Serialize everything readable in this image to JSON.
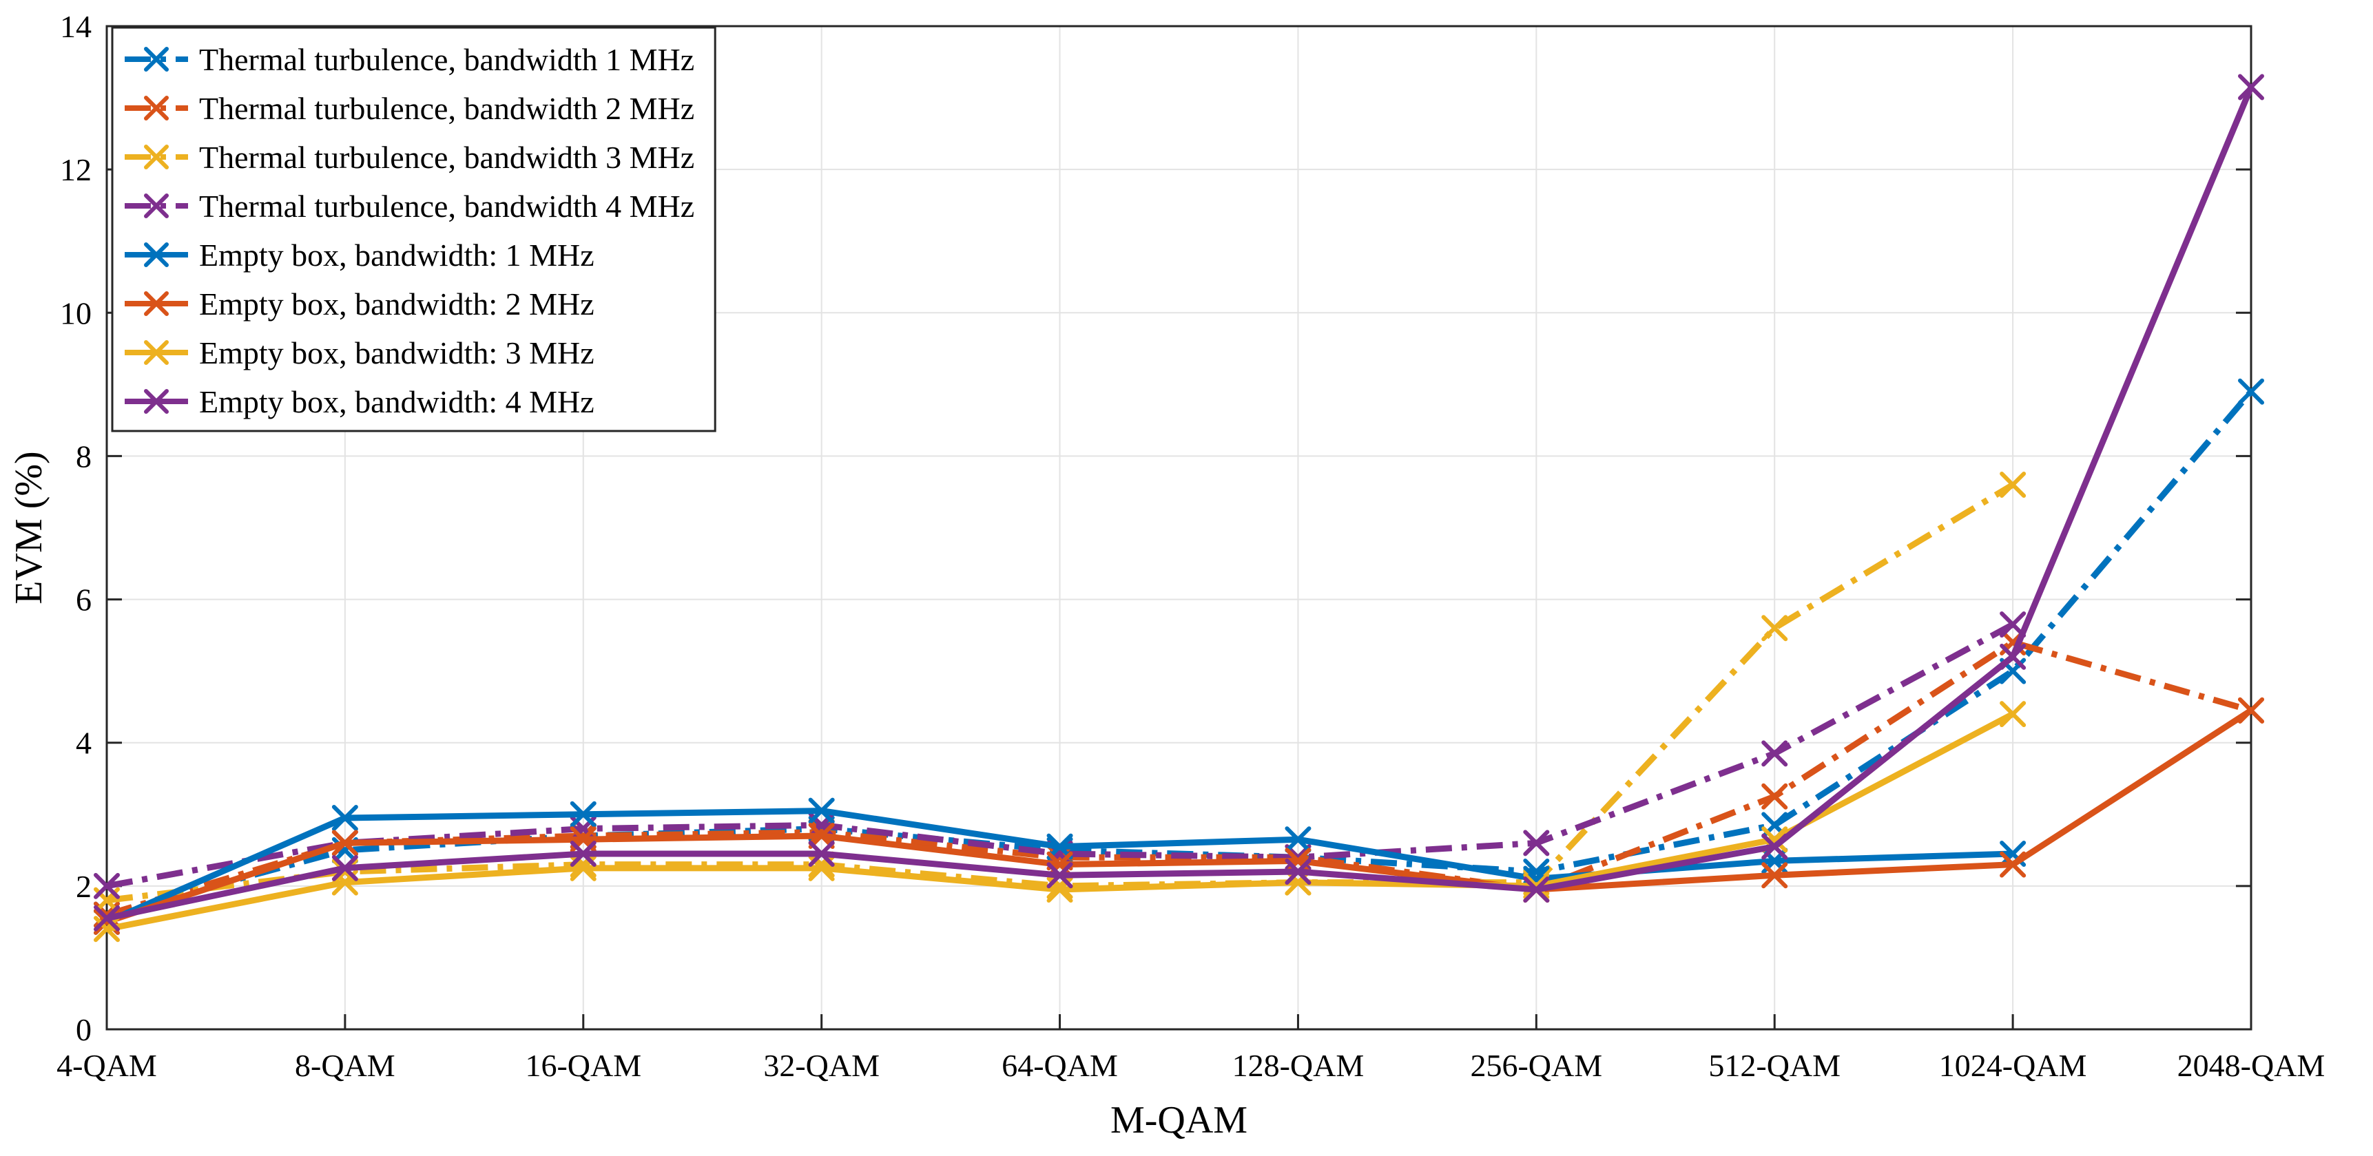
{
  "chart_data": {
    "type": "line",
    "title": "",
    "xlabel": "M-QAM",
    "ylabel": "EVM (%)",
    "categories": [
      "4-QAM",
      "8-QAM",
      "16-QAM",
      "32-QAM",
      "64-QAM",
      "128-QAM",
      "256-QAM",
      "512-QAM",
      "1024-QAM",
      "2048-QAM"
    ],
    "ylim": [
      0,
      14
    ],
    "yticks": [
      "0",
      "2",
      "4",
      "6",
      "8",
      "10",
      "12",
      "14"
    ],
    "grid": true,
    "legend_position": "top-left",
    "series": [
      {
        "name": "Thermal turbulence, bandwidth 1 MHz",
        "color": "#0072BD",
        "dash": "dashdot",
        "values": [
          1.6,
          2.5,
          2.7,
          2.8,
          2.5,
          2.4,
          2.2,
          2.85,
          5.0,
          8.9
        ]
      },
      {
        "name": "Thermal turbulence, bandwidth 2 MHz",
        "color": "#D95319",
        "dash": "dashdot",
        "values": [
          1.6,
          2.6,
          2.7,
          2.75,
          2.4,
          2.4,
          1.95,
          3.25,
          5.4,
          4.45
        ]
      },
      {
        "name": "Thermal turbulence, bandwidth 3 MHz",
        "color": "#EDB120",
        "dash": "dashdot",
        "values": [
          1.8,
          2.2,
          2.3,
          2.3,
          2.0,
          2.05,
          2.05,
          5.6,
          7.6,
          null
        ]
      },
      {
        "name": "Thermal turbulence, bandwidth 4 MHz",
        "color": "#7E2F8E",
        "dash": "dashdot",
        "values": [
          2.0,
          2.6,
          2.8,
          2.85,
          2.45,
          2.4,
          2.6,
          3.85,
          5.65,
          null
        ]
      },
      {
        "name": "Empty box, bandwidth: 1 MHz",
        "color": "#0072BD",
        "dash": "solid",
        "values": [
          1.5,
          2.95,
          3.0,
          3.05,
          2.55,
          2.65,
          2.1,
          2.35,
          2.45,
          null
        ]
      },
      {
        "name": "Empty box, bandwidth: 2 MHz",
        "color": "#D95319",
        "dash": "solid",
        "values": [
          1.5,
          2.6,
          2.65,
          2.7,
          2.3,
          2.35,
          1.95,
          2.15,
          2.3,
          4.45
        ]
      },
      {
        "name": "Empty box, bandwidth: 3 MHz",
        "color": "#EDB120",
        "dash": "solid",
        "values": [
          1.4,
          2.05,
          2.25,
          2.25,
          1.95,
          2.05,
          2.0,
          2.65,
          4.4,
          null
        ]
      },
      {
        "name": "Empty box, bandwidth: 4 MHz",
        "color": "#7E2F8E",
        "dash": "solid",
        "values": [
          1.55,
          2.25,
          2.45,
          2.45,
          2.15,
          2.2,
          1.95,
          2.55,
          5.2,
          13.15
        ]
      }
    ]
  }
}
